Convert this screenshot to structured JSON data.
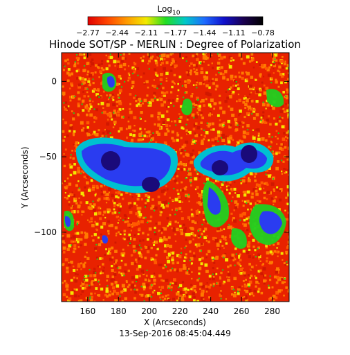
{
  "colorbar": {
    "title": "Log",
    "title_subscript": "10",
    "tick_labels": [
      "-2.77",
      "-2.44",
      "-2.11",
      "-1.77",
      "-1.44",
      "-1.11",
      "-0.78"
    ],
    "range": [
      -2.77,
      -0.78
    ],
    "colors": [
      "#e00000",
      "#ff4400",
      "#ff9a00",
      "#f2ea00",
      "#22dd22",
      "#00c8c8",
      "#1e6bff",
      "#1010cc",
      "#1a0050",
      "#000000"
    ]
  },
  "title": "Hinode SOT/SP - MERLIN : Degree of Polarization",
  "axes": {
    "xlabel": "X (Arcseconds)",
    "ylabel": "Y (Arcseconds)",
    "xlim": [
      143,
      291
    ],
    "ylim": [
      -146,
      19
    ],
    "xticks": [
      "160",
      "180",
      "200",
      "220",
      "240",
      "260",
      "280"
    ],
    "xtick_values": [
      160,
      180,
      200,
      220,
      240,
      260,
      280
    ],
    "yticks": [
      "0",
      "-50",
      "-100"
    ],
    "ytick_values": [
      0,
      -50,
      -100
    ]
  },
  "timestamp": "13-Sep-2016 08:45:04.449",
  "map_palette": {
    "background_red": "#e82200",
    "orange": "#ff7a00",
    "yellow": "#f4e600",
    "green": "#20d020",
    "cyan": "#00c0d0",
    "blue": "#2a3cf0",
    "dark_blue": "#1a0a7a"
  }
}
